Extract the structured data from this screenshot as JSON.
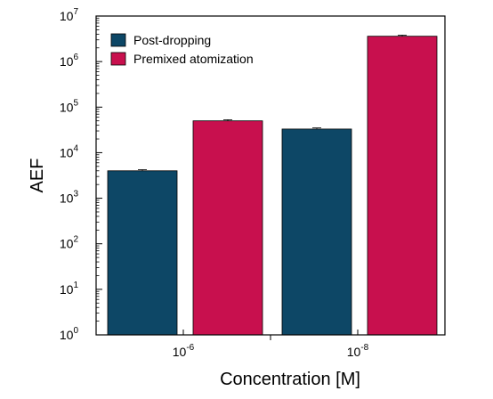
{
  "chart_data": {
    "type": "bar",
    "title": "",
    "xlabel": "Concentration [M]",
    "ylabel": "AEF",
    "yscale": "log",
    "ylim": [
      1,
      10000000
    ],
    "y_ticks": [
      {
        "base": "10",
        "exp": "0",
        "value": 1
      },
      {
        "base": "10",
        "exp": "1",
        "value": 10
      },
      {
        "base": "10",
        "exp": "2",
        "value": 100
      },
      {
        "base": "10",
        "exp": "3",
        "value": 1000
      },
      {
        "base": "10",
        "exp": "4",
        "value": 10000
      },
      {
        "base": "10",
        "exp": "5",
        "value": 100000
      },
      {
        "base": "10",
        "exp": "6",
        "value": 1000000
      },
      {
        "base": "10",
        "exp": "7",
        "value": 10000000
      }
    ],
    "categories": [
      {
        "base": "10",
        "exp": "-6"
      },
      {
        "base": "10",
        "exp": "-8"
      }
    ],
    "series": [
      {
        "name": "Post-dropping",
        "color": "#0d4766",
        "values": [
          4000,
          33000
        ]
      },
      {
        "name": "Premixed atomization",
        "color": "#c8104e",
        "values": [
          50000,
          3600000
        ]
      }
    ],
    "legend_position": "top-left",
    "grid": false
  }
}
